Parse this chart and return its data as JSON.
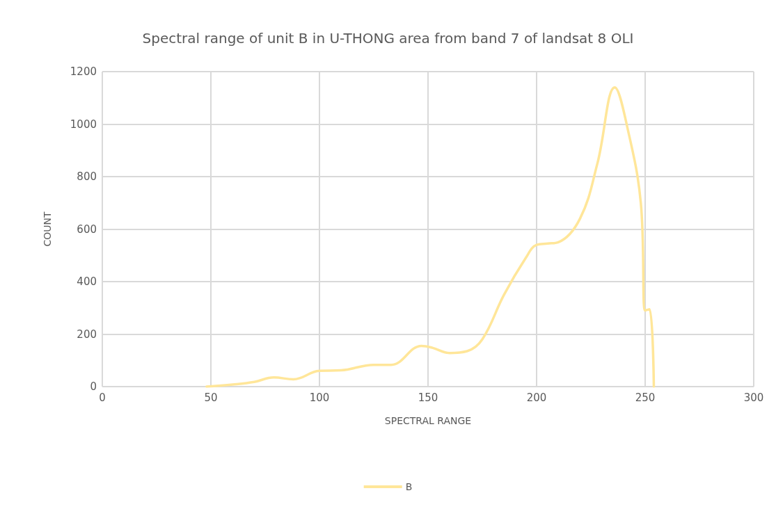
{
  "chart_data": {
    "type": "line",
    "title": "Spectral range of unit B in U-THONG area from band 7 of landsat 8 OLI",
    "xlabel": "SPECTRAL RANGE",
    "ylabel": "COUNT",
    "x": [
      48,
      60,
      70,
      79,
      88,
      100,
      110,
      125,
      133,
      147,
      152,
      160,
      168,
      175,
      185,
      195,
      200,
      205,
      210,
      220,
      228,
      236,
      242,
      248,
      250,
      252,
      254
    ],
    "series": [
      {
        "name": "B",
        "color": "#ffe699",
        "values": [
          0,
          8,
          18,
          35,
          28,
          60,
          62,
          83,
          83,
          155,
          148,
          128,
          135,
          180,
          350,
          490,
          540,
          545,
          550,
          640,
          850,
          1140,
          980,
          700,
          290,
          295,
          0
        ]
      }
    ],
    "xlim": [
      0,
      300
    ],
    "xticks": [
      0,
      50,
      100,
      150,
      200,
      250,
      300
    ],
    "ylim": [
      0,
      1200
    ],
    "yticks": [
      0,
      200,
      400,
      600,
      800,
      1000,
      1200
    ],
    "grid": true,
    "legend": "bottom",
    "marker": "none",
    "line_style": "solid"
  }
}
